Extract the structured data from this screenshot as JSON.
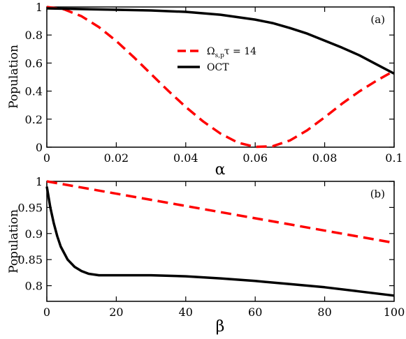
{
  "chart_data": [
    {
      "type": "line",
      "panel_label": "(a)",
      "xlabel": "α",
      "ylabel": "Population",
      "xlim": [
        0,
        0.1
      ],
      "ylim": [
        0,
        1
      ],
      "xticks": [
        0,
        0.02,
        0.04,
        0.06,
        0.08,
        0.1
      ],
      "xtick_labels": [
        "0",
        "0.02",
        "0.04",
        "0.06",
        "0.08",
        "0.1"
      ],
      "yticks": [
        0,
        0.2,
        0.4,
        0.6,
        0.8,
        1
      ],
      "ytick_labels": [
        "0",
        "0.2",
        "0.4",
        "0.6",
        "0.8",
        "1"
      ],
      "legend": {
        "placement": "center-right",
        "entries": [
          {
            "symbol": "Ω",
            "subscript": "s,p",
            "suffix": "τ = 14",
            "color": "#ff0000",
            "dash": true
          },
          {
            "label": "OCT",
            "color": "#000000",
            "dash": false
          }
        ]
      },
      "series": [
        {
          "key": "dashed-red",
          "color": "#ff0000",
          "dashed": true,
          "x": [
            0,
            0.005,
            0.01,
            0.015,
            0.02,
            0.025,
            0.03,
            0.035,
            0.04,
            0.045,
            0.05,
            0.055,
            0.06,
            0.065,
            0.07,
            0.075,
            0.08,
            0.085,
            0.09,
            0.095,
            0.1
          ],
          "y": [
            1.0,
            0.983,
            0.934,
            0.856,
            0.757,
            0.643,
            0.522,
            0.401,
            0.287,
            0.184,
            0.097,
            0.033,
            0.002,
            0.007,
            0.048,
            0.121,
            0.213,
            0.31,
            0.398,
            0.475,
            0.545
          ]
        },
        {
          "key": "oct",
          "name": "OCT",
          "color": "#000000",
          "dashed": false,
          "x": [
            0,
            0.01,
            0.02,
            0.03,
            0.04,
            0.05,
            0.06,
            0.065,
            0.07,
            0.075,
            0.08,
            0.085,
            0.09,
            0.095,
            0.1
          ],
          "y": [
            0.99,
            0.985,
            0.98,
            0.975,
            0.965,
            0.945,
            0.91,
            0.885,
            0.85,
            0.81,
            0.76,
            0.71,
            0.655,
            0.59,
            0.525
          ]
        }
      ]
    },
    {
      "type": "line",
      "panel_label": "(b)",
      "xlabel": "β",
      "ylabel": "Population",
      "xlim": [
        0,
        100
      ],
      "ylim": [
        0.77,
        1
      ],
      "xticks": [
        0,
        20,
        40,
        60,
        80,
        100
      ],
      "xtick_labels": [
        "0",
        "20",
        "40",
        "60",
        "80",
        "100"
      ],
      "yticks": [
        0.8,
        0.85,
        0.9,
        0.95,
        1
      ],
      "ytick_labels": [
        "0.8",
        "0.85",
        "0.9",
        "0.95",
        "1"
      ],
      "series": [
        {
          "key": "dashed-red",
          "color": "#ff0000",
          "dashed": true,
          "x": [
            0,
            100
          ],
          "y": [
            1.0,
            0.882
          ]
        },
        {
          "key": "oct",
          "color": "#000000",
          "dashed": false,
          "x": [
            0,
            1,
            2,
            3,
            4,
            6,
            8,
            10,
            12,
            15,
            20,
            30,
            40,
            50,
            60,
            70,
            80,
            90,
            100
          ],
          "y": [
            0.99,
            0.95,
            0.92,
            0.895,
            0.875,
            0.85,
            0.836,
            0.828,
            0.823,
            0.82,
            0.82,
            0.82,
            0.818,
            0.814,
            0.809,
            0.803,
            0.797,
            0.789,
            0.781
          ]
        }
      ]
    }
  ]
}
